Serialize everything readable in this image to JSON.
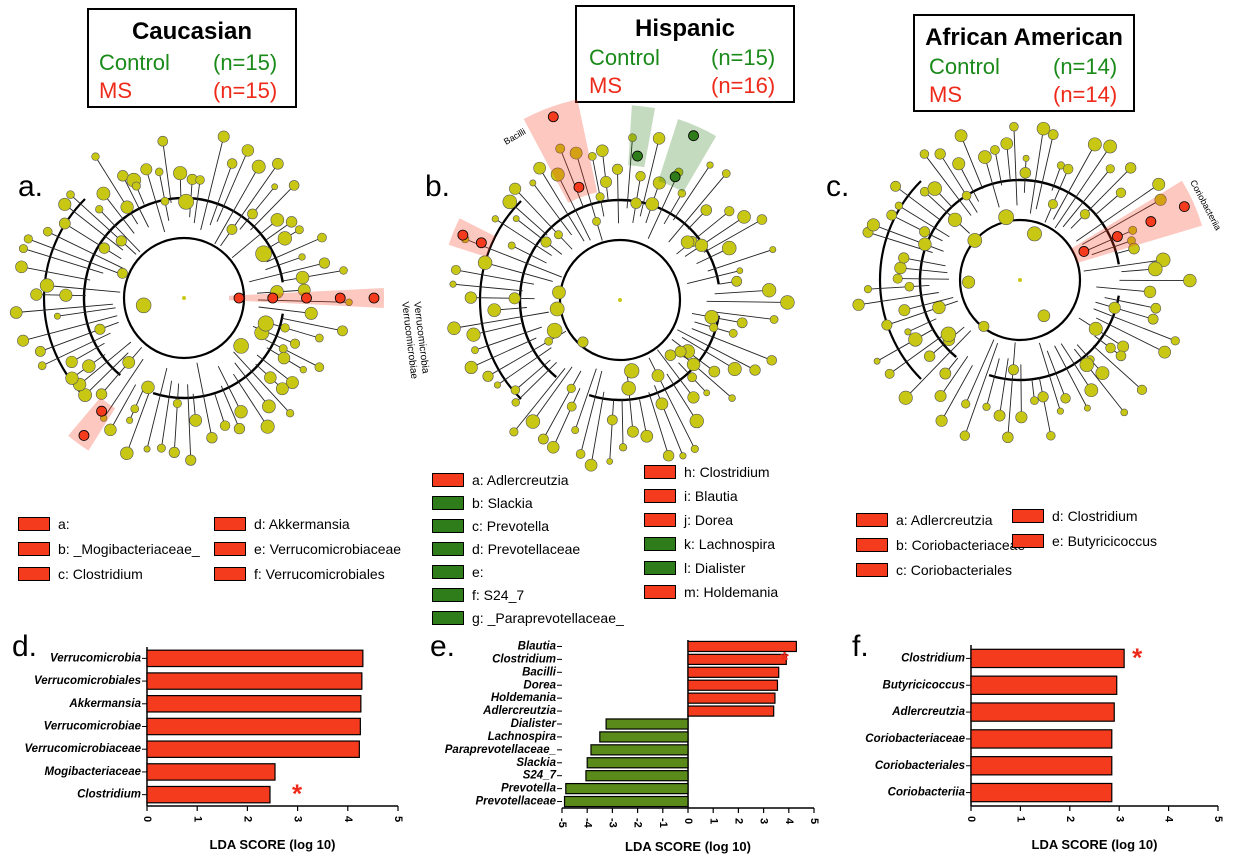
{
  "groups": [
    {
      "title": "Caucasian",
      "control_label": "Control",
      "control_n": "(n=15)",
      "ms_label": "MS",
      "ms_n": "(n=15)"
    },
    {
      "title": "Hispanic",
      "control_label": "Control",
      "control_n": "(n=15)",
      "ms_label": "MS",
      "ms_n": "(n=16)"
    },
    {
      "title": "African American",
      "control_label": "Control",
      "control_n": "(n=14)",
      "ms_label": "MS",
      "ms_n": "(n=14)"
    }
  ],
  "panel_letters": {
    "a": "a.",
    "b": "b.",
    "c": "c.",
    "d": "d.",
    "e": "e.",
    "f": "f."
  },
  "cladogram_labels": {
    "a": [
      "Verrucomicrobia",
      "Verrucomicrobiae"
    ],
    "b": [
      "Bacilli"
    ],
    "c": [
      "Coriobacteriia"
    ]
  },
  "legends": {
    "a": [
      {
        "text": "a:",
        "color": "#f43b1e"
      },
      {
        "text": "b: _Mogibacteriaceae_",
        "color": "#f43b1e"
      },
      {
        "text": "c: Clostridium",
        "color": "#f43b1e"
      },
      {
        "text": "d: Akkermansia",
        "color": "#f43b1e"
      },
      {
        "text": "e: Verrucomicrobiaceae",
        "color": "#f43b1e"
      },
      {
        "text": "f: Verrucomicrobiales",
        "color": "#f43b1e"
      }
    ],
    "b": [
      {
        "text": "a: Adlercreutzia",
        "color": "#f43b1e"
      },
      {
        "text": "b: Slackia",
        "color": "#2e7d1a"
      },
      {
        "text": "c: Prevotella",
        "color": "#2e7d1a"
      },
      {
        "text": "d: Prevotellaceae",
        "color": "#2e7d1a"
      },
      {
        "text": "e:",
        "color": "#2e7d1a"
      },
      {
        "text": "f: S24_7",
        "color": "#2e7d1a"
      },
      {
        "text": "g: _Paraprevotellaceae_",
        "color": "#2e7d1a"
      },
      {
        "text": "h: Clostridium",
        "color": "#f43b1e"
      },
      {
        "text": "i: Blautia",
        "color": "#f43b1e"
      },
      {
        "text": "j: Dorea",
        "color": "#f43b1e"
      },
      {
        "text": "k: Lachnospira",
        "color": "#2e7d1a"
      },
      {
        "text": "l: Dialister",
        "color": "#2e7d1a"
      },
      {
        "text": "m: Holdemania",
        "color": "#f43b1e"
      }
    ],
    "c": [
      {
        "text": "a: Adlercreutzia",
        "color": "#f43b1e"
      },
      {
        "text": "b: Coriobacteriaceae",
        "color": "#f43b1e"
      },
      {
        "text": "c: Coriobacteriales",
        "color": "#f43b1e"
      },
      {
        "text": "d: Clostridium",
        "color": "#f43b1e"
      },
      {
        "text": "e: Butyricicoccus",
        "color": "#f43b1e"
      }
    ]
  },
  "colors": {
    "ms": "#f43b1e",
    "control": "#5a8a1a",
    "node": "#c8c814",
    "significance": "#ee2a1a"
  },
  "chart_data": [
    {
      "type": "bar",
      "orientation": "horizontal",
      "panel": "d",
      "categories": [
        "Verrucomicrobia",
        "Verrucomicrobiales",
        "Akkermansia",
        "Verrucomicrobiae",
        "Verrucomicrobiaceae",
        "Mogibacteriaceae",
        "Clostridium"
      ],
      "values": [
        4.3,
        4.28,
        4.26,
        4.25,
        4.23,
        2.55,
        2.45
      ],
      "bar_colors": [
        "#f43b1e",
        "#f43b1e",
        "#f43b1e",
        "#f43b1e",
        "#f43b1e",
        "#f43b1e",
        "#f43b1e"
      ],
      "xlabel": "LDA SCORE (log 10)",
      "xlim": [
        0,
        5
      ],
      "xticks": [
        "0",
        "1",
        "2",
        "3",
        "4",
        "5"
      ],
      "annotations": [
        {
          "category": "Clostridium",
          "text": "*"
        }
      ]
    },
    {
      "type": "bar",
      "orientation": "horizontal",
      "panel": "e",
      "categories": [
        "Blautia",
        "Clostridium",
        "Bacilli",
        "Dorea",
        "Holdemania",
        "Adlercreutzia",
        "Dialister",
        "Lachnospira",
        "Paraprevotellaceae_",
        "Slackia",
        "S24_7",
        "Prevotella",
        "Prevotellaceae"
      ],
      "values": [
        4.3,
        3.9,
        3.6,
        3.55,
        3.45,
        3.4,
        -3.25,
        -3.5,
        -3.85,
        -4.0,
        -4.05,
        -4.85,
        -4.9
      ],
      "bar_colors": [
        "#f43b1e",
        "#f43b1e",
        "#f43b1e",
        "#f43b1e",
        "#f43b1e",
        "#f43b1e",
        "#5a8a1a",
        "#5a8a1a",
        "#5a8a1a",
        "#5a8a1a",
        "#5a8a1a",
        "#5a8a1a",
        "#5a8a1a"
      ],
      "xlabel": "LDA SCORE (log 10)",
      "xlim": [
        -5,
        5
      ],
      "xticks": [
        "-5",
        "-4",
        "-3",
        "-2",
        "-1",
        "0",
        "1",
        "2",
        "3",
        "4",
        "5"
      ],
      "annotations": [
        {
          "category": "Clostridium",
          "text": "*"
        }
      ]
    },
    {
      "type": "bar",
      "orientation": "horizontal",
      "panel": "f",
      "categories": [
        "Clostridium",
        "Butyricicoccus",
        "Adlercreutzia",
        "Coriobacteriaceae",
        "Coriobacteriales",
        "Coriobacteriia"
      ],
      "values": [
        3.1,
        2.95,
        2.9,
        2.85,
        2.85,
        2.85
      ],
      "bar_colors": [
        "#f43b1e",
        "#f43b1e",
        "#f43b1e",
        "#f43b1e",
        "#f43b1e",
        "#f43b1e"
      ],
      "xlabel": "LDA SCORE (log 10)",
      "xlim": [
        0,
        5
      ],
      "xticks": [
        "0",
        "1",
        "2",
        "3",
        "4",
        "5"
      ],
      "annotations": [
        {
          "category": "Clostridium",
          "text": "*"
        }
      ]
    }
  ]
}
